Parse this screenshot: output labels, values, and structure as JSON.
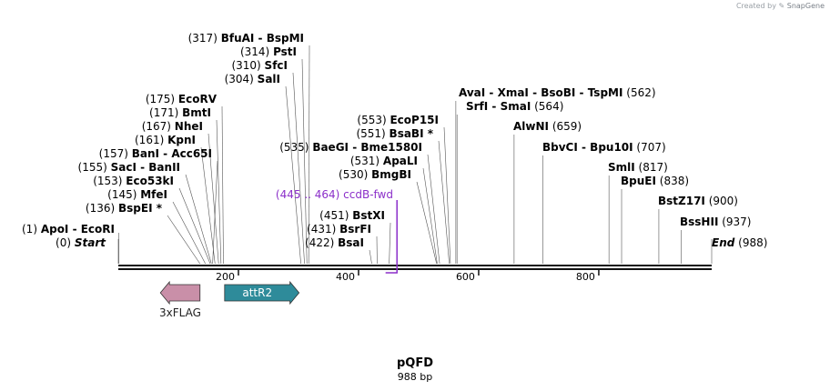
{
  "credit": {
    "prefix": "Created by",
    "brand": "SnapGene"
  },
  "map": {
    "name": "pQFD",
    "length_label": "988 bp",
    "length": 988,
    "ticks": [
      200,
      400,
      600,
      800
    ],
    "sites": [
      {
        "id": "apoi",
        "pos": "(1)",
        "name": "ApoI  -  EcoRI",
        "bp": 1
      },
      {
        "id": "start",
        "pos": "(0)",
        "name": "Start",
        "bp": 0,
        "italic": true
      },
      {
        "id": "bspei",
        "pos": "(136)",
        "name": "BspEI",
        "bp": 136,
        "star": "*"
      },
      {
        "id": "mfei",
        "pos": "(145)",
        "name": "MfeI",
        "bp": 145
      },
      {
        "id": "eco53ki",
        "pos": "(153)",
        "name": "Eco53kI",
        "bp": 153
      },
      {
        "id": "saci",
        "pos": "(155)",
        "name": "SacI  -  BanII",
        "bp": 155
      },
      {
        "id": "bani",
        "pos": "(157)",
        "name": "BanI  -  Acc65I",
        "bp": 157
      },
      {
        "id": "kpni",
        "pos": "(161)",
        "name": "KpnI",
        "bp": 161
      },
      {
        "id": "nhei",
        "pos": "(167)",
        "name": "NheI",
        "bp": 167
      },
      {
        "id": "bmti",
        "pos": "(171)",
        "name": "BmtI",
        "bp": 171
      },
      {
        "id": "ecorv",
        "pos": "(175)",
        "name": "EcoRV",
        "bp": 175
      },
      {
        "id": "sali",
        "pos": "(304)",
        "name": "SalI",
        "bp": 304
      },
      {
        "id": "sfci",
        "pos": "(310)",
        "name": "SfcI",
        "bp": 310
      },
      {
        "id": "psti",
        "pos": "(314)",
        "name": "PstI",
        "bp": 314
      },
      {
        "id": "bfuai",
        "pos": "(317)",
        "name": "BfuAI  -  BspMI",
        "bp": 317
      },
      {
        "id": "baegi",
        "pos": "(535)",
        "name": "BaeGI  -  Bme1580I",
        "bp": 535
      },
      {
        "id": "bsai",
        "pos": "(422)",
        "name": "BsaI",
        "bp": 422
      },
      {
        "id": "bsrfi",
        "pos": "(431)",
        "name": "BsrFI",
        "bp": 431
      },
      {
        "id": "bstxi",
        "pos": "(451)",
        "name": "BstXI",
        "bp": 451
      },
      {
        "id": "bmgbi",
        "pos": "(530)",
        "name": "BmgBI",
        "bp": 530
      },
      {
        "id": "apali",
        "pos": "(531)",
        "name": "ApaLI",
        "bp": 531
      },
      {
        "id": "bsabi",
        "pos": "(551)",
        "name": "BsaBI",
        "bp": 551,
        "star": "*"
      },
      {
        "id": "ecop15i",
        "pos": "(553)",
        "name": "EcoP15I",
        "bp": 553
      },
      {
        "id": "avai",
        "pos": "(562)",
        "name": "AvaI  -  XmaI  -  BsoBI  -  TspMI",
        "bp": 562
      },
      {
        "id": "srfi",
        "pos": "(564)",
        "name": "SrfI  -  SmaI",
        "bp": 564
      },
      {
        "id": "alwni",
        "pos": "(659)",
        "name": "AlwNI",
        "bp": 659
      },
      {
        "id": "bbvci",
        "pos": "(707)",
        "name": "BbvCI  -  Bpu10I",
        "bp": 707
      },
      {
        "id": "smli",
        "pos": "(817)",
        "name": "SmlI",
        "bp": 817
      },
      {
        "id": "bpuei",
        "pos": "(838)",
        "name": "BpuEI",
        "bp": 838
      },
      {
        "id": "bstz17i",
        "pos": "(900)",
        "name": "BstZ17I",
        "bp": 900
      },
      {
        "id": "bsshii",
        "pos": "(937)",
        "name": "BssHII",
        "bp": 937
      },
      {
        "id": "end",
        "pos": "(988)",
        "name": "End",
        "bp": 988,
        "italic": true
      }
    ],
    "primer": {
      "range": "(445 .. 464)",
      "name": "ccdB-fwd",
      "start_bp": 445,
      "end_bp": 464,
      "color": "#8b2fc9"
    },
    "features": [
      {
        "id": "3xflag",
        "name": "3xFLAG",
        "start_bp": 70,
        "end_bp": 136,
        "direction": "left",
        "color": "#c98fa8"
      },
      {
        "id": "attr2",
        "name": "attR2",
        "start_bp": 177,
        "end_bp": 301,
        "direction": "right",
        "color": "#2e8b9a"
      }
    ]
  }
}
